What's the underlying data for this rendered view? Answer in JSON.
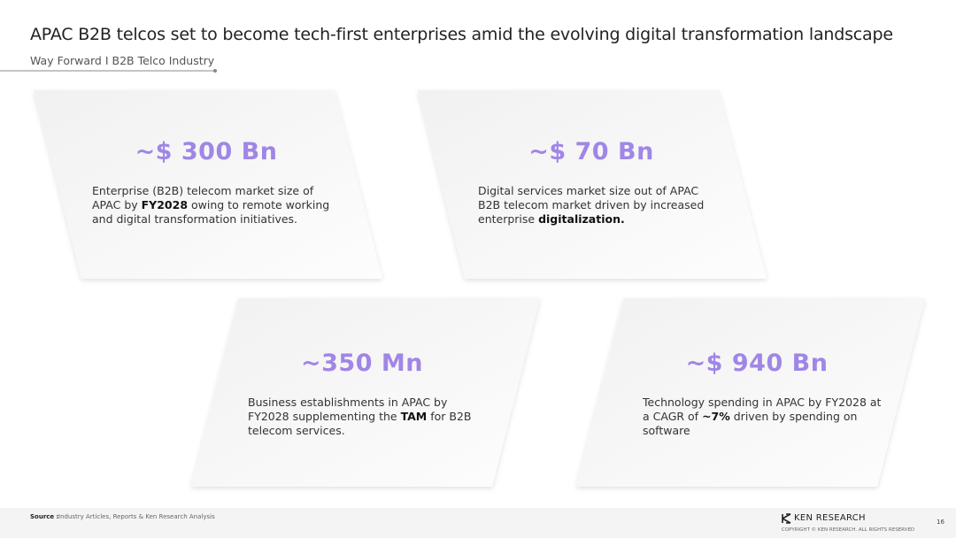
{
  "header": {
    "title": "APAC B2B telcos set to become tech-first enterprises amid the evolving digital transformation landscape",
    "subtitle": "Way Forward I B2B Telco Industry"
  },
  "cards": [
    {
      "value": "~$ 300 Bn",
      "description": [
        {
          "text": "Enterprise (B2B) telecom market size of APAC by ",
          "bold": false
        },
        {
          "text": "FY2028",
          "bold": true
        },
        {
          "text": " owing to remote working and digital transformation initiatives.",
          "bold": false
        }
      ]
    },
    {
      "value": "~$ 70 Bn",
      "description": [
        {
          "text": "Digital services market size out of APAC B2B telecom market driven by increased enterprise ",
          "bold": false
        },
        {
          "text": "digitalization.",
          "bold": true
        }
      ]
    },
    {
      "value": "~350 Mn",
      "description": [
        {
          "text": "Business establishments in APAC by FY2028 supplementing the ",
          "bold": false
        },
        {
          "text": "TAM",
          "bold": true
        },
        {
          "text": " for B2B telecom services.",
          "bold": false
        }
      ]
    },
    {
      "value": "~$ 940 Bn",
      "description": [
        {
          "text": "Technology spending in APAC by FY2028 at a CAGR of ",
          "bold": false
        },
        {
          "text": "~7%",
          "bold": true
        },
        {
          "text": " driven by spending on software",
          "bold": false
        }
      ]
    }
  ],
  "footer": {
    "source_label": "Source :",
    "source": "Industry Articles, Reports & Ken Research Analysis",
    "brand": "KEN RESEARCH",
    "copyright": "COPYRIGHT © KEN RESEARCH. ALL RIGHTS RESERVED",
    "page": "16"
  }
}
